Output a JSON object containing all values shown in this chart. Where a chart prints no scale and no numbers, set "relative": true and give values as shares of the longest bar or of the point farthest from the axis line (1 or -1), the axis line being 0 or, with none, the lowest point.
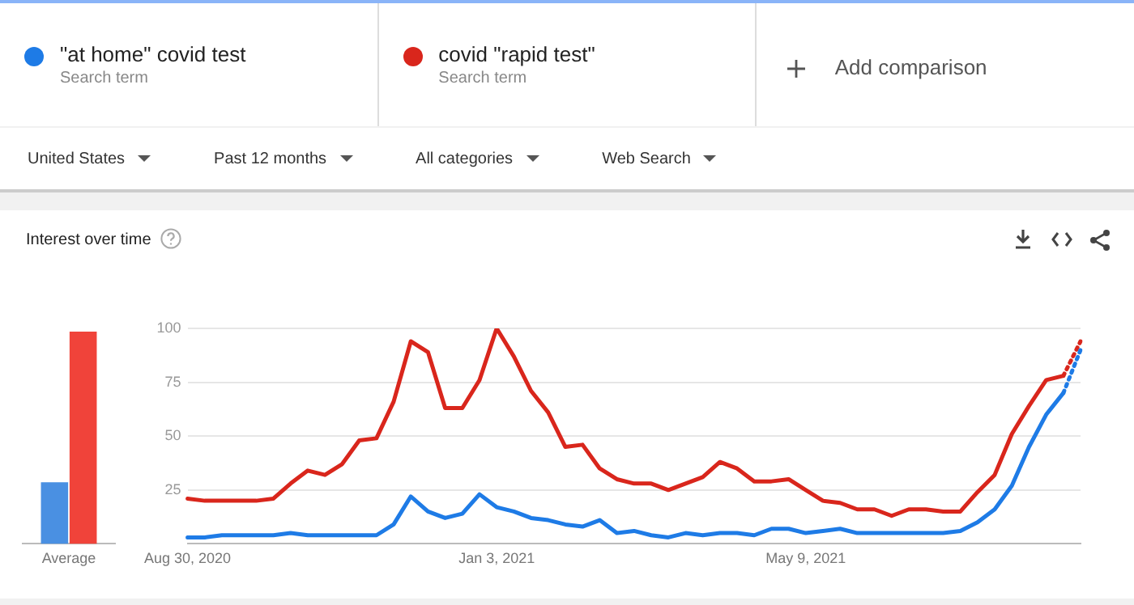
{
  "chart_data": [
    {
      "type": "bar",
      "title": "Interest over time",
      "relative": true,
      "categories": [
        "Average"
      ],
      "grid": false,
      "series": [
        {
          "color": "#4a90e2",
          "values": [
            0.29
          ]
        },
        {
          "color": "#f0433a",
          "values": [
            1
          ]
        }
      ]
    },
    {
      "type": "line",
      "legend": "top",
      "grid": "y",
      "marker": "none",
      "ylim": [
        0,
        100
      ],
      "yticks": [
        25,
        50,
        75,
        100
      ],
      "annotations": [
        "Search term",
        "Search term",
        "Add comparison",
        "United States",
        "Past 12 months",
        "All categories",
        "Web Search"
      ],
      "categories": [
        "Aug 30, 2020",
        null,
        null,
        null,
        null,
        null,
        null,
        null,
        null,
        null,
        null,
        null,
        null,
        null,
        null,
        null,
        null,
        null,
        "Jan 3, 2021",
        null,
        null,
        null,
        null,
        null,
        null,
        null,
        null,
        null,
        null,
        null,
        null,
        null,
        null,
        null,
        null,
        null,
        "May 9, 2021",
        null,
        null,
        null,
        null,
        null,
        null,
        null,
        null,
        null,
        null,
        null,
        null,
        null,
        null,
        null,
        null
      ],
      "series": [
        {
          "name": "\"at home\" covid test",
          "color": "#1e7be6",
          "line_style": "solid",
          "values": [
            3,
            3,
            4,
            4,
            4,
            4,
            5,
            4,
            4,
            4,
            4,
            4,
            9,
            22,
            15,
            12,
            14,
            23,
            17,
            15,
            12,
            11,
            9,
            8,
            11,
            5,
            6,
            4,
            3,
            5,
            4,
            5,
            5,
            4,
            7,
            7,
            5,
            6,
            7,
            5,
            5,
            5,
            5,
            5,
            5,
            6,
            10,
            16,
            27,
            45,
            60,
            70,
            null
          ]
        },
        {
          "name": "covid \"rapid test\"",
          "color": "#d9261c",
          "line_style": "solid",
          "values": [
            21,
            20,
            20,
            20,
            20,
            21,
            28,
            34,
            32,
            37,
            48,
            49,
            66,
            94,
            89,
            63,
            63,
            76,
            100,
            87,
            71,
            61,
            45,
            46,
            35,
            30,
            28,
            28,
            25,
            28,
            31,
            38,
            35,
            29,
            29,
            30,
            25,
            20,
            19,
            16,
            16,
            13,
            16,
            16,
            15,
            15,
            24,
            32,
            51,
            64,
            76,
            78,
            null
          ]
        },
        {
          "color": "#1e7be6",
          "line_style": "dotted",
          "values": [
            null,
            null,
            null,
            null,
            null,
            null,
            null,
            null,
            null,
            null,
            null,
            null,
            null,
            null,
            null,
            null,
            null,
            null,
            null,
            null,
            null,
            null,
            null,
            null,
            null,
            null,
            null,
            null,
            null,
            null,
            null,
            null,
            null,
            null,
            null,
            null,
            null,
            null,
            null,
            null,
            null,
            null,
            null,
            null,
            null,
            null,
            null,
            null,
            null,
            null,
            null,
            70,
            90
          ]
        },
        {
          "color": "#d9261c",
          "line_style": "dotted",
          "values": [
            null,
            null,
            null,
            null,
            null,
            null,
            null,
            null,
            null,
            null,
            null,
            null,
            null,
            null,
            null,
            null,
            null,
            null,
            null,
            null,
            null,
            null,
            null,
            null,
            null,
            null,
            null,
            null,
            null,
            null,
            null,
            null,
            null,
            null,
            null,
            null,
            null,
            null,
            null,
            null,
            null,
            null,
            null,
            null,
            null,
            null,
            null,
            null,
            null,
            null,
            null,
            78,
            94
          ]
        }
      ]
    }
  ]
}
